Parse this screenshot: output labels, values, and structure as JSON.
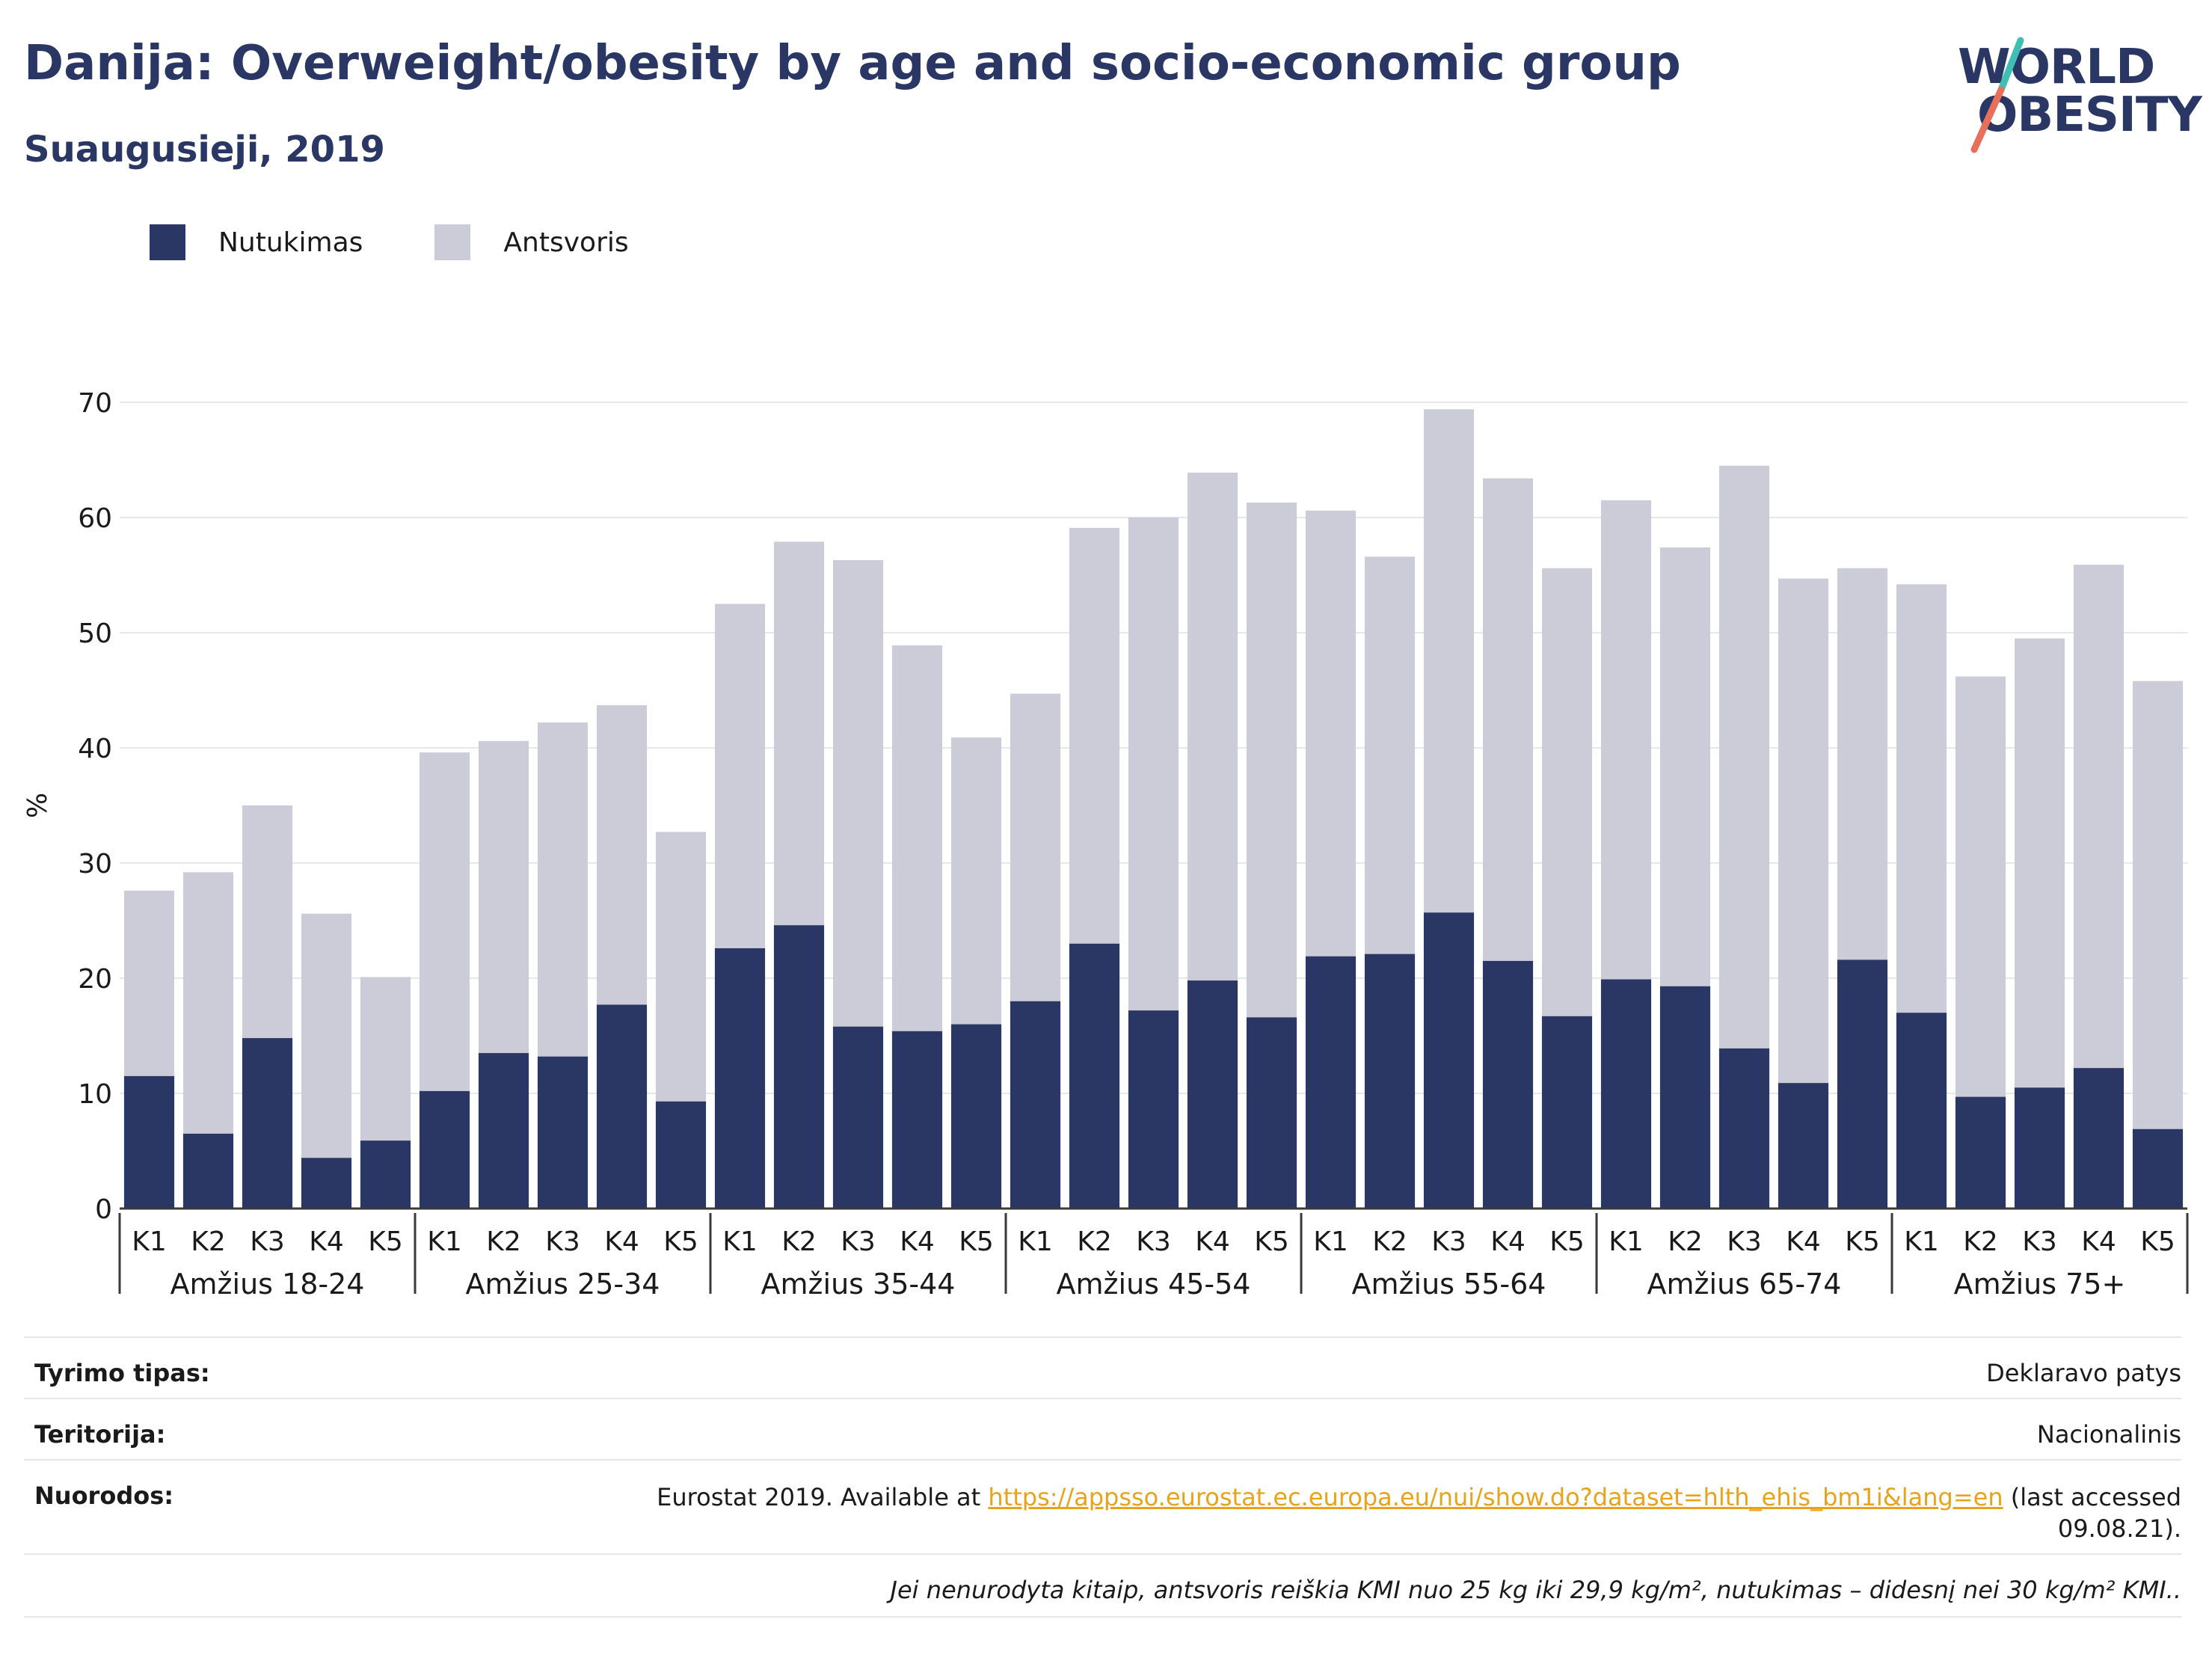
{
  "header": {
    "title": "Danija: Overweight/obesity by age and socio-economic group",
    "subtitle": "Suaugusieji, 2019"
  },
  "logo": {
    "line1": "WORLD",
    "line2": "OBESITY",
    "slash_colors": [
      "#3fbfb3",
      "#e8705a"
    ]
  },
  "colors": {
    "obesity": "#2a3663",
    "overweight": "#cbccd8",
    "text": "#1a1a1a",
    "gridline": "#e6e8ee",
    "link": "#e8a31a"
  },
  "chart_data": {
    "type": "bar",
    "stacked": true,
    "title": "",
    "xlabel": "",
    "ylabel": "%",
    "ylim": [
      0,
      70
    ],
    "yticks": [
      0,
      10,
      20,
      30,
      40,
      50,
      60,
      70
    ],
    "grid": "horizontal",
    "legend_position": "top-left",
    "subcategories": [
      "K1",
      "K2",
      "K3",
      "K4",
      "K5"
    ],
    "groups": [
      "Amžius 18-24",
      "Amžius 25-34",
      "Amžius 35-44",
      "Amžius 45-54",
      "Amžius 55-64",
      "Amžius 65-74",
      "Amžius 75+"
    ],
    "series": [
      {
        "name": "Nutukimas",
        "values": [
          11.5,
          6.5,
          14.8,
          4.4,
          5.9,
          10.2,
          13.5,
          13.2,
          17.7,
          9.3,
          22.6,
          24.6,
          15.8,
          15.4,
          16.0,
          18.0,
          23.0,
          17.2,
          19.8,
          16.6,
          21.9,
          22.1,
          25.7,
          21.5,
          16.7,
          19.9,
          19.3,
          13.9,
          10.9,
          21.6,
          17.0,
          9.7,
          10.5,
          12.2,
          6.9
        ]
      },
      {
        "name": "Antsvoris",
        "values": [
          16.1,
          22.7,
          20.2,
          21.2,
          14.2,
          29.4,
          27.1,
          29.0,
          26.0,
          23.4,
          29.9,
          33.3,
          40.5,
          33.5,
          24.9,
          26.7,
          36.1,
          42.8,
          44.1,
          44.7,
          38.7,
          34.5,
          43.7,
          41.9,
          38.9,
          41.6,
          38.1,
          50.6,
          43.8,
          34.0,
          37.2,
          36.5,
          39.0,
          43.7,
          38.9
        ]
      }
    ]
  },
  "info": {
    "survey_type": {
      "label": "Tyrimo tipas:",
      "value": "Deklaravo patys"
    },
    "territory": {
      "label": "Teritorija:",
      "value": "Nacionalinis"
    },
    "references": {
      "label": "Nuorodos:",
      "prefix": "Eurostat 2019. Available at",
      "link": "https://appsso.eurostat.ec.europa.eu/nui/show.do?dataset=hlth_ehis_bm1i&lang=en",
      "suffix": "(last accessed",
      "date": "09.08.21)."
    },
    "note": "Jei nenurodyta kitaip, antsvoris reiškia KMI nuo 25 kg iki 29,9 kg/m², nutukimas – didesnį nei 30 kg/m² KMI.."
  }
}
